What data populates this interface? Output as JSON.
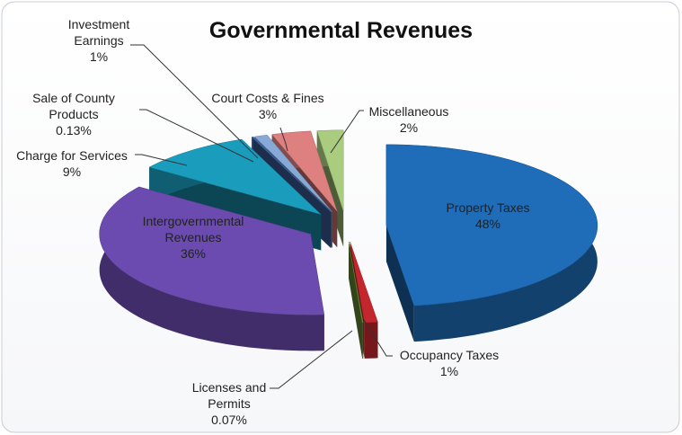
{
  "chart_data": {
    "type": "pie",
    "title": "Governmental Revenues",
    "categories": [
      "Property Taxes",
      "Occupancy Taxes",
      "Licenses and Permits",
      "Intergovernmental Revenues",
      "Charge for Services",
      "Sale of County Products",
      "Investment Earnings",
      "Court Costs & Fines",
      "Miscellaneous"
    ],
    "values": [
      48,
      1,
      0.07,
      36,
      9,
      0.13,
      1,
      3,
      2
    ],
    "value_labels": [
      "48%",
      "1%",
      "0.07%",
      "36%",
      "9%",
      "0.13%",
      "1%",
      "3%",
      "2%"
    ],
    "colors": [
      "#1f6cb8",
      "#c3272d",
      "#6f9a3a",
      "#6b4bb0",
      "#1a9cbd",
      "#3f66a8",
      "#86a9d8",
      "#de7f80",
      "#a9cc7e"
    ]
  }
}
